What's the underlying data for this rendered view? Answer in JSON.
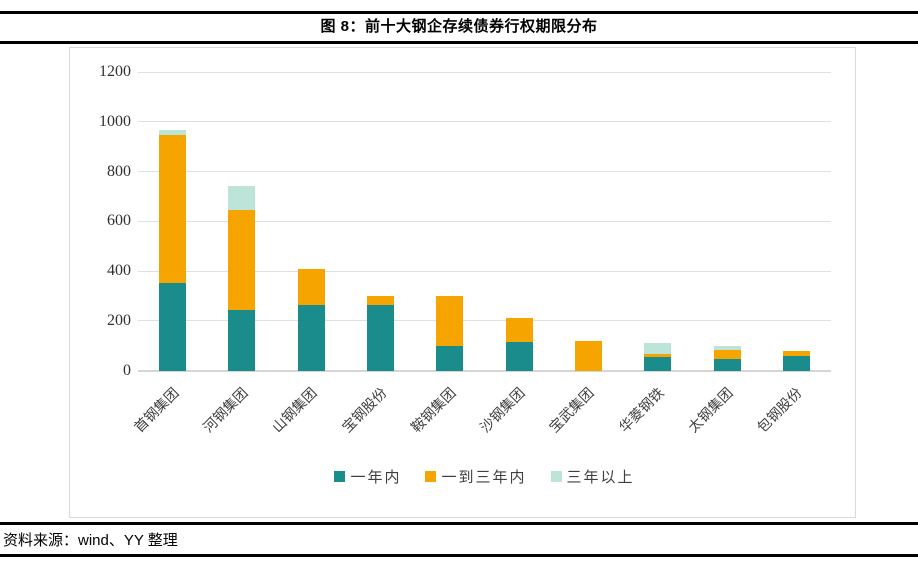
{
  "figure": {
    "title": "图 8：前十大钢企存续债券行权期限分布"
  },
  "source": {
    "text": "资料来源：wind、YY 整理"
  },
  "chart_data": {
    "type": "bar",
    "stacked": true,
    "title": "图 8：前十大钢企存续债券行权期限分布",
    "categories": [
      "首钢集团",
      "河钢集团",
      "山钢集团",
      "宝钢股份",
      "鞍钢集团",
      "沙钢集团",
      "宝武集团",
      "华菱钢铁",
      "太钢集团",
      "包钢股份"
    ],
    "series": [
      {
        "name": "一年内",
        "color": "#1B8C8C",
        "values": [
          350,
          245,
          265,
          265,
          100,
          115,
          0,
          55,
          45,
          60
        ]
      },
      {
        "name": "一到三年内",
        "color": "#F6A500",
        "values": [
          595,
          400,
          145,
          35,
          200,
          95,
          120,
          10,
          38,
          20
        ]
      },
      {
        "name": "三年以上",
        "color": "#BCE4D9",
        "values": [
          20,
          95,
          0,
          0,
          0,
          0,
          0,
          45,
          17,
          0
        ]
      }
    ],
    "xlabel": "",
    "ylabel": "",
    "ylim": [
      0,
      1200
    ],
    "yticks": [
      0,
      200,
      400,
      600,
      800,
      1000,
      1200
    ],
    "grid": true,
    "legend_position": "bottom",
    "colors": {
      "gridline": "#E0E0E0",
      "axis_text": "#3F3F3F",
      "panel_border": "#D9D9D9"
    }
  }
}
